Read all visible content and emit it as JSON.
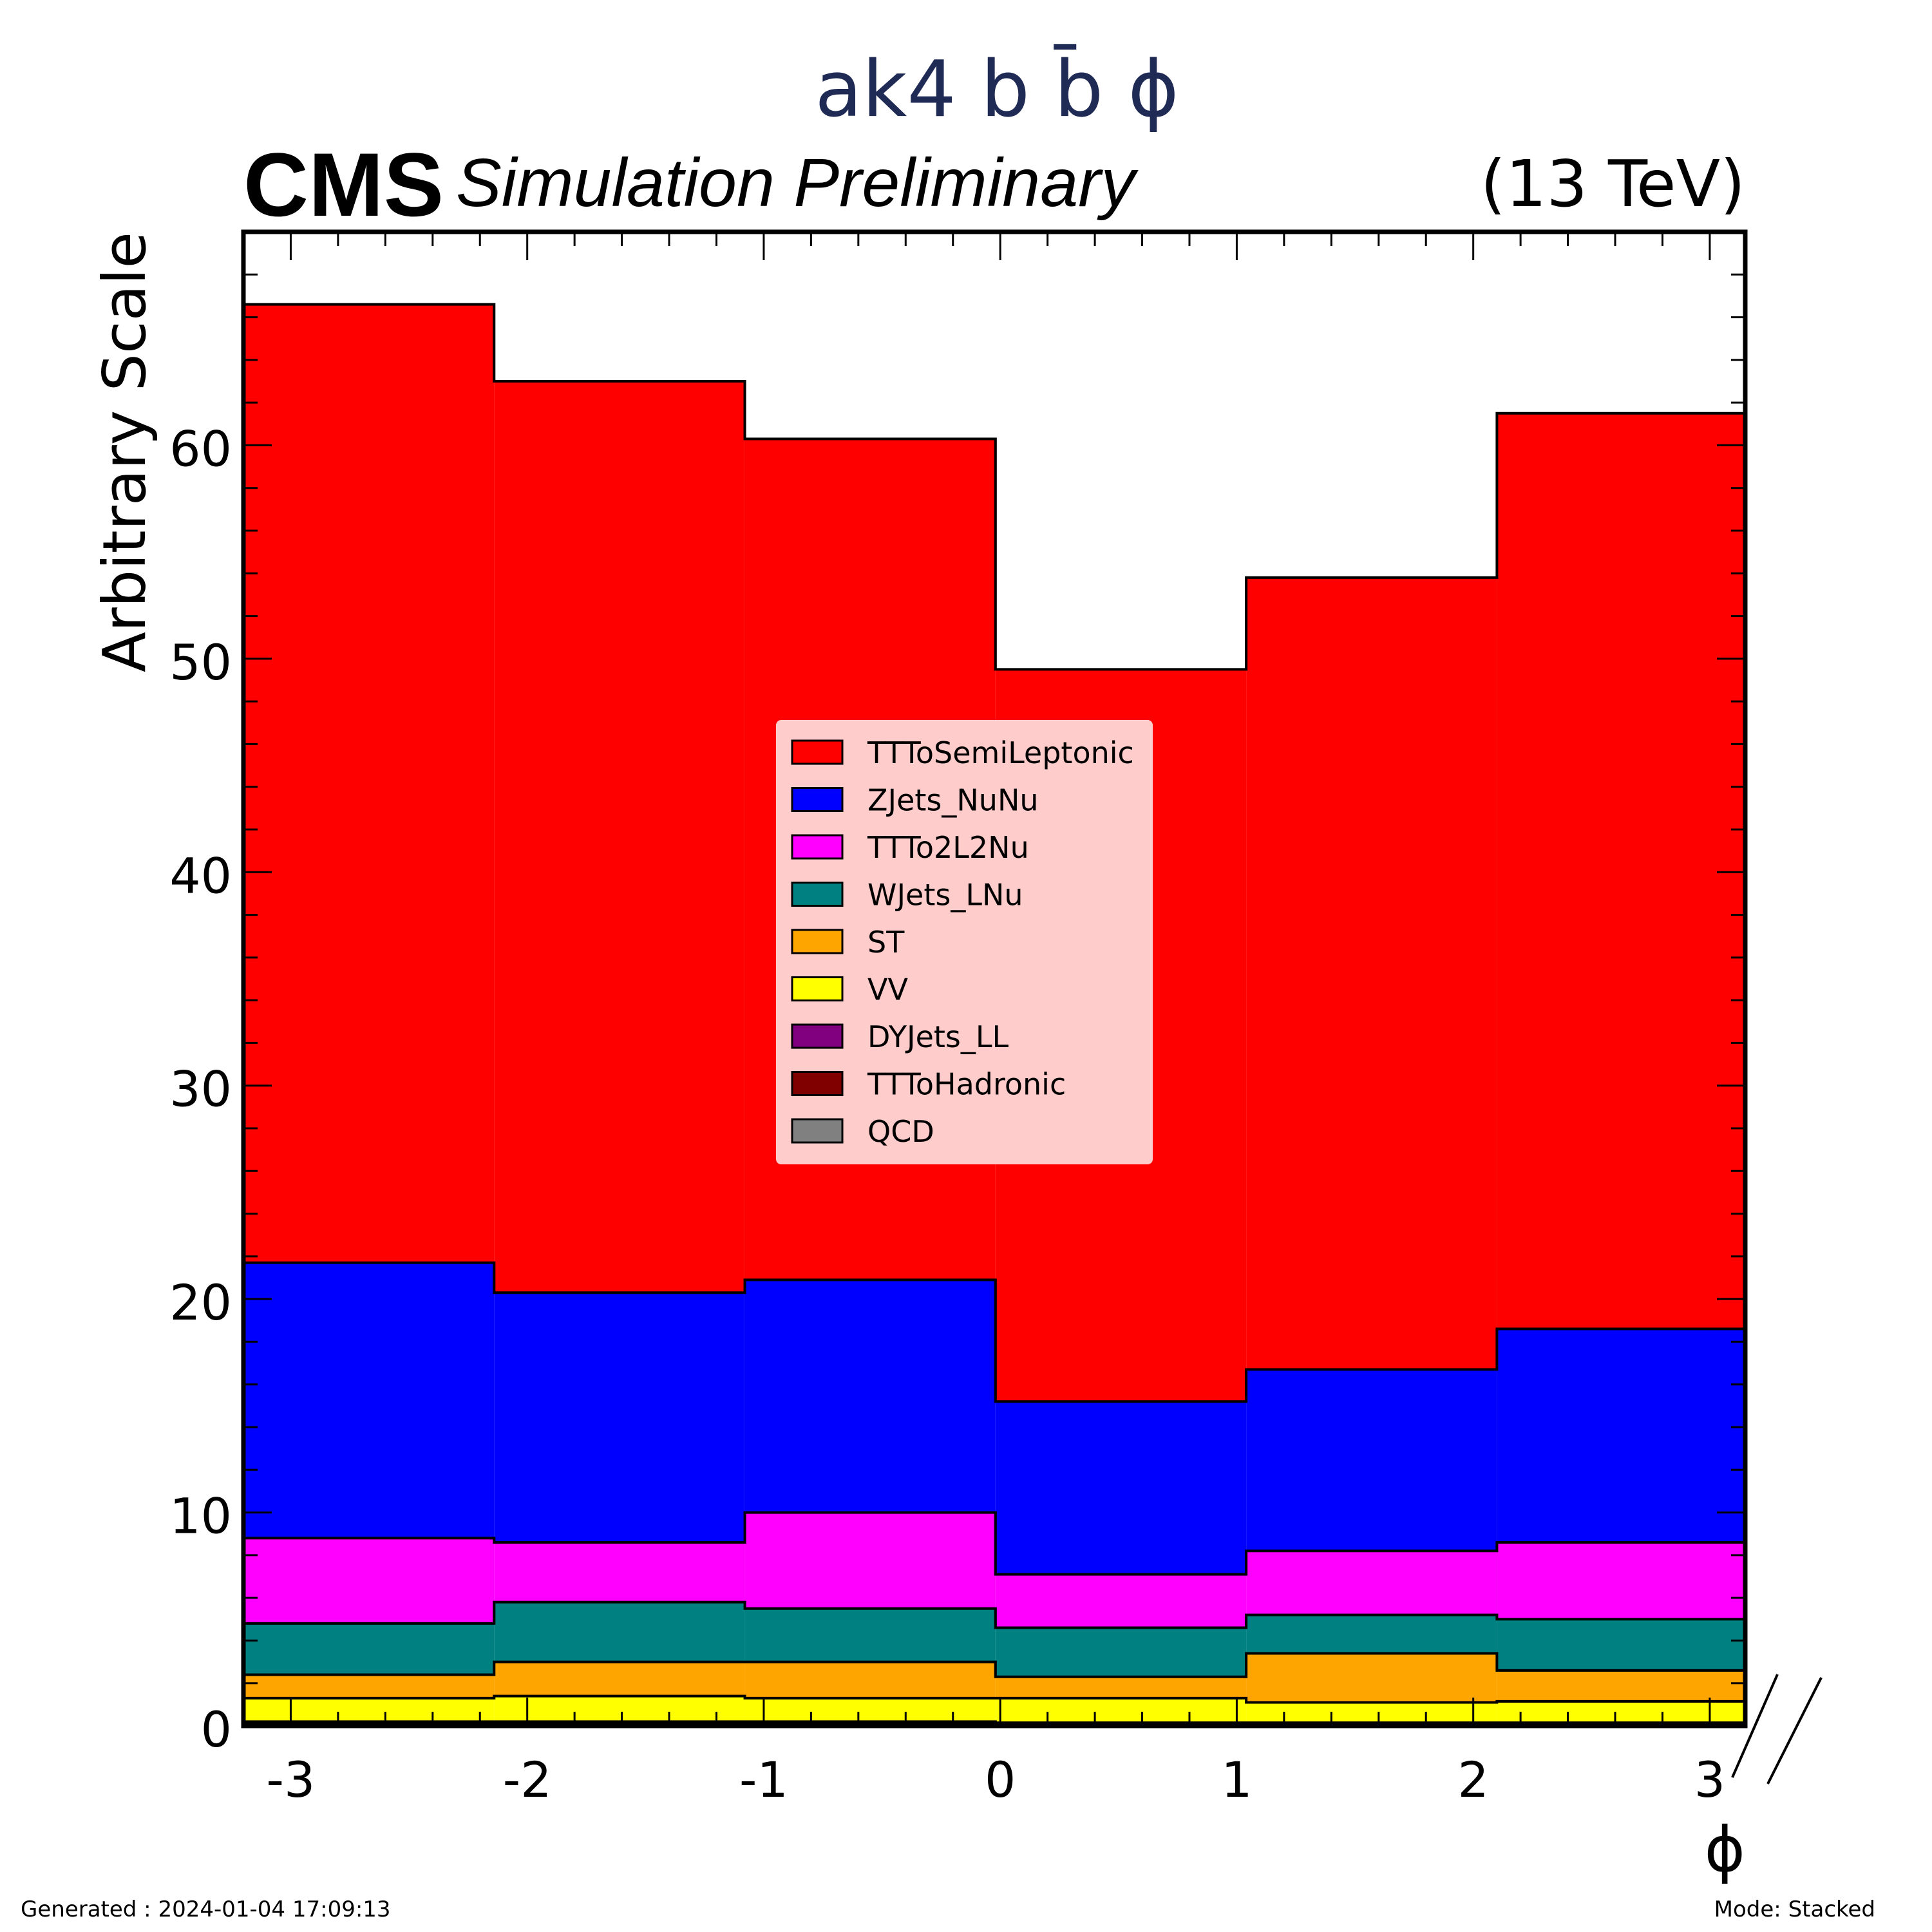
{
  "header": {
    "title": "ak4 b b̄ ϕ",
    "cms_label": "CMS",
    "cms_sub_label": "Simulation Preliminary",
    "energy_label": "(13 TeV)",
    "title_color": "#1f2a55"
  },
  "footer": {
    "generated": "Generated : 2024-01-04 17:09:13",
    "mode": "Mode: Stacked"
  },
  "chart_data": {
    "type": "bar",
    "stacked": true,
    "histogram": true,
    "xlabel": "ϕ",
    "ylabel": "Arbitrary Scale",
    "xlim": [
      -3.2,
      3.15
    ],
    "ylim": [
      0,
      70
    ],
    "bin_edges": [
      -3.2,
      -2.14,
      -1.08,
      -0.02,
      1.04,
      2.1,
      3.15
    ],
    "x_ticks": [
      -3,
      -2,
      -1,
      0,
      1,
      2,
      3
    ],
    "x_tick_labels": [
      "-3",
      "-2",
      "-1",
      "0",
      "1",
      "2",
      "3"
    ],
    "y_ticks": [
      0,
      10,
      20,
      30,
      40,
      50,
      60
    ],
    "y_tick_labels": [
      "0",
      "10",
      "20",
      "30",
      "40",
      "50",
      "60"
    ],
    "legend_position": "center",
    "series": [
      {
        "name": "QCD",
        "color": "#808080",
        "values": [
          0.05,
          0.05,
          0.05,
          0.05,
          0.05,
          0.05
        ]
      },
      {
        "name": "TTToHadronic",
        "color": "#800000",
        "values": [
          0.1,
          0.1,
          0.1,
          0.05,
          0.05,
          0.05
        ]
      },
      {
        "name": "DYJets_LL",
        "color": "#800080",
        "values": [
          0.05,
          0.05,
          0.05,
          0.05,
          0.05,
          0.05
        ]
      },
      {
        "name": "VV",
        "color": "#ffff00",
        "values": [
          1.1,
          1.2,
          1.1,
          1.15,
          0.95,
          1.0
        ]
      },
      {
        "name": "ST",
        "color": "#ffa500",
        "values": [
          1.1,
          1.6,
          1.7,
          1.0,
          2.3,
          1.45
        ]
      },
      {
        "name": "WJets_LNu",
        "color": "#008080",
        "values": [
          2.4,
          2.8,
          2.5,
          2.3,
          1.8,
          2.4
        ]
      },
      {
        "name": "TTTo2L2Nu",
        "color": "#ff00ff",
        "values": [
          4.0,
          2.8,
          4.5,
          2.5,
          3.0,
          3.6
        ]
      },
      {
        "name": "ZJets_NuNu",
        "color": "#0000ff",
        "values": [
          12.9,
          11.7,
          10.9,
          8.1,
          8.5,
          10.0
        ]
      },
      {
        "name": "TTToSemiLeptonic",
        "color": "#ff0000",
        "values": [
          44.9,
          42.7,
          39.4,
          34.3,
          37.1,
          42.9
        ]
      }
    ],
    "legend_order": [
      "TTToSemiLeptonic",
      "ZJets_NuNu",
      "TTTo2L2Nu",
      "WJets_LNu",
      "ST",
      "VV",
      "DYJets_LL",
      "TTToHadronic",
      "QCD"
    ],
    "legend_background": "#ffcccc"
  }
}
